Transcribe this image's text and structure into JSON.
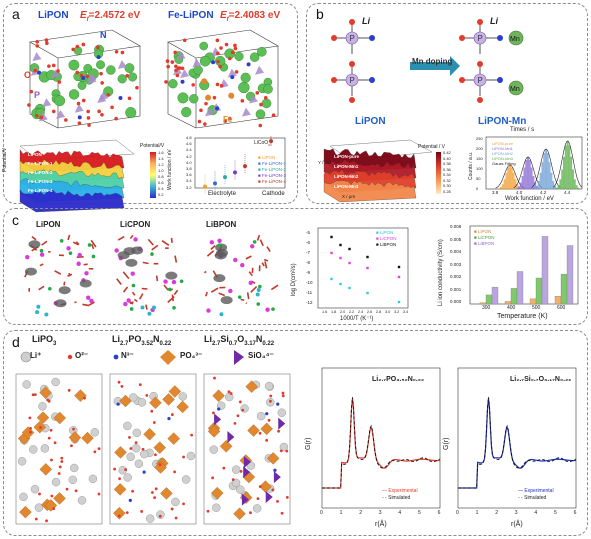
{
  "panel_a": {
    "label": "a",
    "lipon_title": "LiPON",
    "lipon_ef": "E",
    "lipon_ef_sub": "f",
    "lipon_ef_val": "=2.4572 eV",
    "felipon_title": "Fe-LiPON",
    "felipon_ef": "E",
    "felipon_ef_sub": "f",
    "felipon_ef_val": "=2.4083 eV",
    "atom_N": "N",
    "atom_O": "O",
    "atom_P": "P",
    "atom_Fe": "Fe",
    "surface_cbar_title": "Potential/V",
    "surface_cbar_ticks": [
      "1.6",
      "1.4",
      "1.2",
      "1.0",
      "0.8",
      "0.6",
      "0.4",
      "0.2"
    ],
    "surface_layers": [
      "LiPON",
      "Fe-LiPON-1",
      "Fe-LiPON-2",
      "Fe-LiPON-3",
      "Fe-LiPON-4"
    ],
    "surface_zlabel": "Potential/V",
    "chart_ylabel": "Work function / eV",
    "chart_xlabels": [
      "Electrolyte",
      "Cathode"
    ],
    "chart_licoo2": "LiCoO",
    "chart_legend": [
      "LiPON",
      "Fe-LiPON-1",
      "Fe-LiPON-2",
      "Fe-LiPON-3",
      "Fe-LiPON-4"
    ],
    "chart_yticks": [
      "4.8",
      "4.6",
      "4.4",
      "4.2",
      "4.0",
      "3.8",
      "3.6",
      "3.4",
      "3.2"
    ]
  },
  "panel_b": {
    "label": "b",
    "li_label": "Li",
    "arrow_label": "Mn doping",
    "left_title": "LiPON",
    "right_title": "LiPON-Mn",
    "atom_P": "P",
    "atom_N": "N",
    "atom_Mn": "Mn",
    "surface_cbar_title": "Potential / V",
    "surface_cbar_ticks": [
      "0.42",
      "0.40",
      "0.38",
      "0.36",
      "0.34",
      "0.32",
      "0.30",
      "0.28"
    ],
    "surface_layers": [
      "LiPON-pure",
      "LiPON-Mn1",
      "LiPON-Mn2",
      "LiPON-Mn3"
    ],
    "surface_xlabel": "X / μm",
    "surface_ylabel": "Y / μm",
    "hist_top_label": "Times / s",
    "hist_xlabel": "Work function / eV",
    "hist_ylabel": "Counts / a.u.",
    "hist_legend": [
      "LiPON-pure",
      "LiPON-Mn1",
      "LiPON-Mn2",
      "LiPON-Mn3",
      "Gauss Fitting"
    ],
    "hist_xticks": [
      "3.8",
      "4.0",
      "4.2",
      "4.4"
    ],
    "hist_yticks": [
      "250",
      "200",
      "150",
      "100",
      "50",
      "0"
    ]
  },
  "panel_c": {
    "label": "c",
    "struct_titles": [
      "LiPON",
      "LiCPON",
      "LiBPON"
    ],
    "arrhenius": {
      "ylabel": "log D(cm²/s)",
      "xlabel": "1000/T (K⁻¹)",
      "legend": [
        "LiPON",
        "LiCPON",
        "LiBPON"
      ],
      "yticks": [
        "-5",
        "-6",
        "-7",
        "-8",
        "-9",
        "-10",
        "-11",
        "-12"
      ],
      "xticks": [
        "1.6",
        "1.8",
        "2.0",
        "2.2",
        "2.4",
        "2.6",
        "2.8",
        "3.0",
        "3.2",
        "3.4"
      ]
    },
    "bars": {
      "ylabel": "Li ion conductivity (S/cm)",
      "xlabel": "Temperature (K)",
      "legend": [
        "LiPON",
        "LiCPON",
        "LiBPON"
      ],
      "yticks": [
        "0.006",
        "0.005",
        "0.004",
        "0.003",
        "0.002",
        "0.001",
        "0.000"
      ],
      "xticks": [
        "300",
        "400",
        "500",
        "600"
      ]
    }
  },
  "panel_d": {
    "label": "d",
    "titles": [
      "LiPO",
      "Li",
      "Li"
    ],
    "title1_sub": "3",
    "title2_main": "Li",
    "title2_parts": [
      "2.7",
      "PO",
      "3.52",
      "N",
      "0.22"
    ],
    "title3_parts": [
      "2.7",
      "Si",
      "0.7",
      "O",
      "3.17",
      "N",
      "0.22"
    ],
    "legend_li": "Li⁺",
    "legend_o": "O²⁻",
    "legend_n": "N³⁻",
    "legend_po": "PO₄³⁻",
    "legend_sio": "SiO₄⁴⁻",
    "gr1_title": "Li₂.₇PO₃.₅₂N₀.₂₂",
    "gr2_title": "Li₂.₇Si₀.₇O₃.₁₇N₀.₂₂",
    "gr_ylabel": "G(r)",
    "gr_xlabel": "r(Å)",
    "gr_xticks": [
      "0",
      "1",
      "2",
      "3",
      "4",
      "5",
      "6"
    ],
    "gr_legend": [
      "Experimental",
      "Simulated"
    ]
  },
  "colors": {
    "red_text": "#e23b2b",
    "blue_text": "#1f47c9",
    "lipon_green": "#4db04a",
    "licpon_bar": "#7fc96b",
    "lipon_bar": "#f3b06a",
    "libpon_bar": "#b9a6e0",
    "po4_orange": "#e1882e",
    "sio4_purple": "#6f2aa8"
  },
  "chart_data": [
    {
      "type": "line",
      "title": "",
      "xlabel": "Work function / eV",
      "ylabel": "Counts / a.u.",
      "series": [
        {
          "name": "LiPON-pure",
          "mean": 3.9,
          "peak": 120
        },
        {
          "name": "LiPON-Mn1",
          "mean": 4.05,
          "peak": 160
        },
        {
          "name": "LiPON-Mn2",
          "mean": 4.2,
          "peak": 200
        },
        {
          "name": "LiPON-Mn3",
          "mean": 4.38,
          "peak": 240
        }
      ]
    },
    {
      "type": "scatter",
      "xlabel": "1000/T (K⁻¹)",
      "ylabel": "log D(cm²/s)",
      "series": [
        {
          "name": "LiPON",
          "x": [
            1.8,
            2.0,
            2.2,
            2.6,
            3.3
          ],
          "y": [
            -9.6,
            -10.1,
            -10.5,
            -11.0,
            -11.9
          ]
        },
        {
          "name": "LiCPON",
          "x": [
            1.8,
            2.0,
            2.2,
            2.6,
            3.3
          ],
          "y": [
            -7.0,
            -7.5,
            -8.0,
            -8.5,
            -9.4
          ]
        },
        {
          "name": "LiBPON",
          "x": [
            1.8,
            2.0,
            2.2,
            2.6,
            3.3
          ],
          "y": [
            -5.4,
            -6.2,
            -6.6,
            -7.4,
            -8.4
          ]
        }
      ]
    },
    {
      "type": "bar",
      "xlabel": "Temperature (K)",
      "ylabel": "Li ion conductivity (S/cm)",
      "categories": [
        "300",
        "400",
        "500",
        "600"
      ],
      "series": [
        {
          "name": "LiPON",
          "values": [
            0.0001,
            0.0002,
            0.0004,
            0.0006
          ]
        },
        {
          "name": "LiCPON",
          "values": [
            0.0007,
            0.0012,
            0.002,
            0.0023
          ]
        },
        {
          "name": "LiBPON",
          "values": [
            0.0013,
            0.0025,
            0.0052,
            0.0045
          ]
        }
      ],
      "ylim": [
        0,
        0.006
      ]
    }
  ]
}
